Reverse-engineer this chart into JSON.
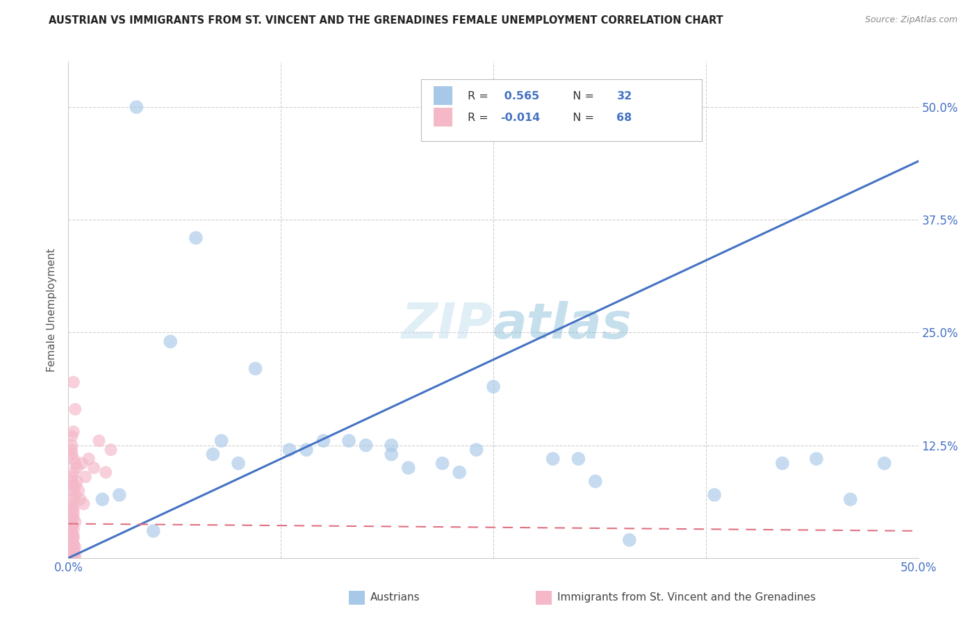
{
  "title": "AUSTRIAN VS IMMIGRANTS FROM ST. VINCENT AND THE GRENADINES FEMALE UNEMPLOYMENT CORRELATION CHART",
  "source": "Source: ZipAtlas.com",
  "ylabel": "Female Unemployment",
  "color_blue": "#a8c8e8",
  "color_pink": "#f4b8c8",
  "line_blue": "#4472c4",
  "line_pink": "#e07080",
  "watermark": "ZIPatlas",
  "xlim": [
    0.0,
    0.5
  ],
  "ylim": [
    0.0,
    0.55
  ],
  "yticks": [
    0.0,
    0.125,
    0.25,
    0.375,
    0.5
  ],
  "xticks": [
    0.0,
    0.125,
    0.25,
    0.375,
    0.5
  ],
  "ytick_labels": [
    "",
    "12.5%",
    "25.0%",
    "37.5%",
    "50.0%"
  ],
  "xtick_labels": [
    "0.0%",
    "",
    "",
    "",
    "50.0%"
  ],
  "legend_r1_label": "R =  0.565",
  "legend_n1_label": "N = 32",
  "legend_r2_label": "R = -0.014",
  "legend_n2_label": "N = 68",
  "blue_line_x0": 0.0,
  "blue_line_y0": 0.0,
  "blue_line_x1": 0.5,
  "blue_line_y1": 0.44,
  "pink_line_x0": 0.0,
  "pink_line_y0": 0.038,
  "pink_line_x1": 0.5,
  "pink_line_y1": 0.03,
  "aus_x": [
    0.04,
    0.32,
    0.075,
    0.19,
    0.19,
    0.22,
    0.23,
    0.24,
    0.3,
    0.31,
    0.165,
    0.175,
    0.1,
    0.11,
    0.085,
    0.285,
    0.13,
    0.14,
    0.15,
    0.25,
    0.33,
    0.38,
    0.42,
    0.44,
    0.46,
    0.02,
    0.03,
    0.05,
    0.06,
    0.09,
    0.2,
    0.48
  ],
  "aus_y": [
    0.5,
    0.5,
    0.355,
    0.125,
    0.115,
    0.105,
    0.095,
    0.12,
    0.11,
    0.085,
    0.13,
    0.125,
    0.105,
    0.21,
    0.115,
    0.11,
    0.12,
    0.12,
    0.13,
    0.19,
    0.02,
    0.07,
    0.105,
    0.11,
    0.065,
    0.065,
    0.07,
    0.03,
    0.24,
    0.13,
    0.1,
    0.105
  ],
  "svg_x": [
    0.003,
    0.004,
    0.003,
    0.002,
    0.002,
    0.002,
    0.002,
    0.003,
    0.004,
    0.005,
    0.003,
    0.002,
    0.002,
    0.002,
    0.003,
    0.004,
    0.003,
    0.002,
    0.002,
    0.003,
    0.003,
    0.004,
    0.002,
    0.002,
    0.003,
    0.002,
    0.002,
    0.003,
    0.002,
    0.003,
    0.004,
    0.002,
    0.002,
    0.003,
    0.002,
    0.002,
    0.003,
    0.002,
    0.003,
    0.004,
    0.002,
    0.002,
    0.003,
    0.002,
    0.003,
    0.002,
    0.003,
    0.002,
    0.003,
    0.002,
    0.018,
    0.025,
    0.012,
    0.008,
    0.015,
    0.022,
    0.01,
    0.005,
    0.004,
    0.006,
    0.007,
    0.009,
    0.003,
    0.002,
    0.002,
    0.003,
    0.002,
    0.003
  ],
  "svg_y": [
    0.195,
    0.165,
    0.14,
    0.135,
    0.125,
    0.12,
    0.115,
    0.11,
    0.105,
    0.1,
    0.095,
    0.09,
    0.085,
    0.08,
    0.075,
    0.07,
    0.065,
    0.06,
    0.055,
    0.05,
    0.045,
    0.04,
    0.038,
    0.035,
    0.032,
    0.028,
    0.025,
    0.022,
    0.018,
    0.015,
    0.012,
    0.01,
    0.008,
    0.006,
    0.005,
    0.004,
    0.003,
    0.002,
    0.002,
    0.002,
    0.003,
    0.004,
    0.005,
    0.006,
    0.007,
    0.008,
    0.009,
    0.01,
    0.015,
    0.02,
    0.13,
    0.12,
    0.11,
    0.105,
    0.1,
    0.095,
    0.09,
    0.085,
    0.08,
    0.075,
    0.065,
    0.06,
    0.055,
    0.045,
    0.035,
    0.025,
    0.018,
    0.01
  ]
}
